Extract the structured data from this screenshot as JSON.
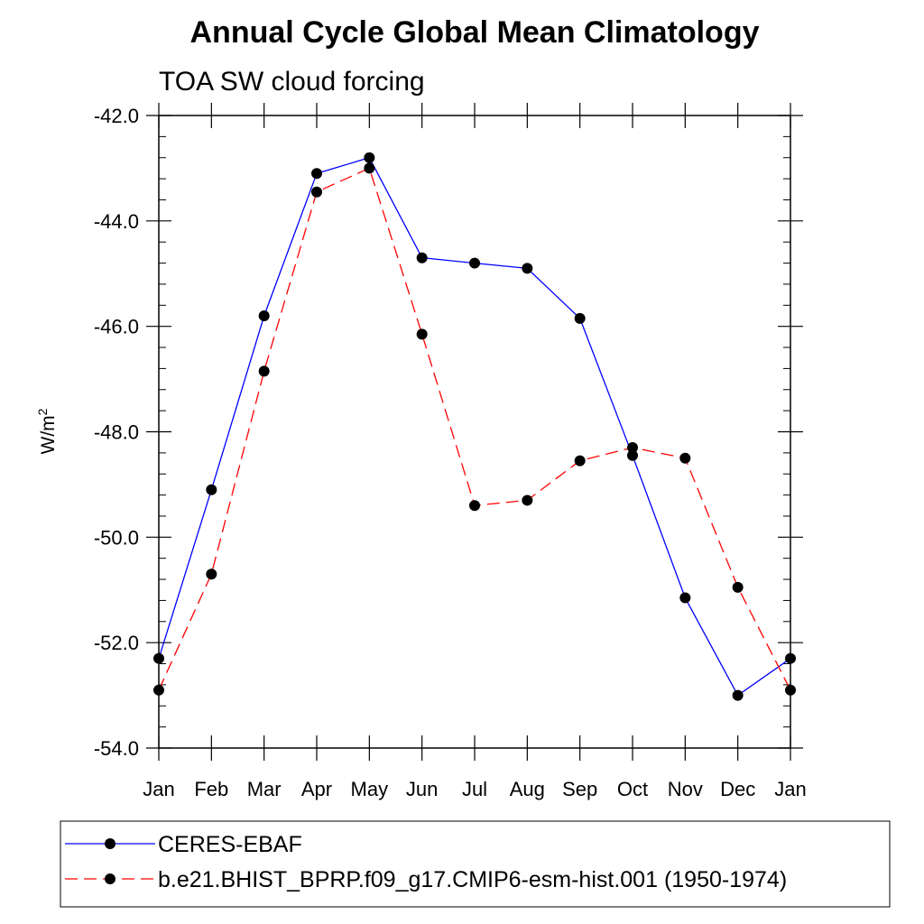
{
  "chart_data": {
    "type": "line",
    "title": "Annual Cycle Global Mean Climatology",
    "subtitle": "TOA SW cloud forcing",
    "ylabel": "W/m",
    "ylabel_superscript": "2",
    "xlabel": "",
    "ylim": [
      -54.0,
      -42.0
    ],
    "yticks": [
      -54.0,
      -52.0,
      -50.0,
      -48.0,
      -46.0,
      -44.0,
      -42.0
    ],
    "ytick_labels": [
      "-54.0",
      "-52.0",
      "-50.0",
      "-48.0",
      "-46.0",
      "-44.0",
      "-42.0"
    ],
    "categories": [
      "Jan",
      "Feb",
      "Mar",
      "Apr",
      "May",
      "Jun",
      "Jul",
      "Aug",
      "Sep",
      "Oct",
      "Nov",
      "Dec",
      "Jan"
    ],
    "series": [
      {
        "name": "CERES-EBAF",
        "color": "#0000ff",
        "dash": "solid",
        "values": [
          -52.3,
          -49.1,
          -45.8,
          -43.1,
          -42.8,
          -44.7,
          -44.8,
          -44.9,
          -45.85,
          -48.45,
          -51.15,
          -53.0,
          -52.3
        ]
      },
      {
        "name": "b.e21.BHIST_BPRP.f09_g17.CMIP6-esm-hist.001 (1950-1974)",
        "color": "#ff0000",
        "dash": "dashed",
        "values": [
          -52.9,
          -50.7,
          -46.85,
          -43.45,
          -43.0,
          -46.15,
          -49.4,
          -49.3,
          -48.55,
          -48.3,
          -48.5,
          -50.95,
          -52.9
        ]
      }
    ],
    "legend_position": "bottom"
  }
}
